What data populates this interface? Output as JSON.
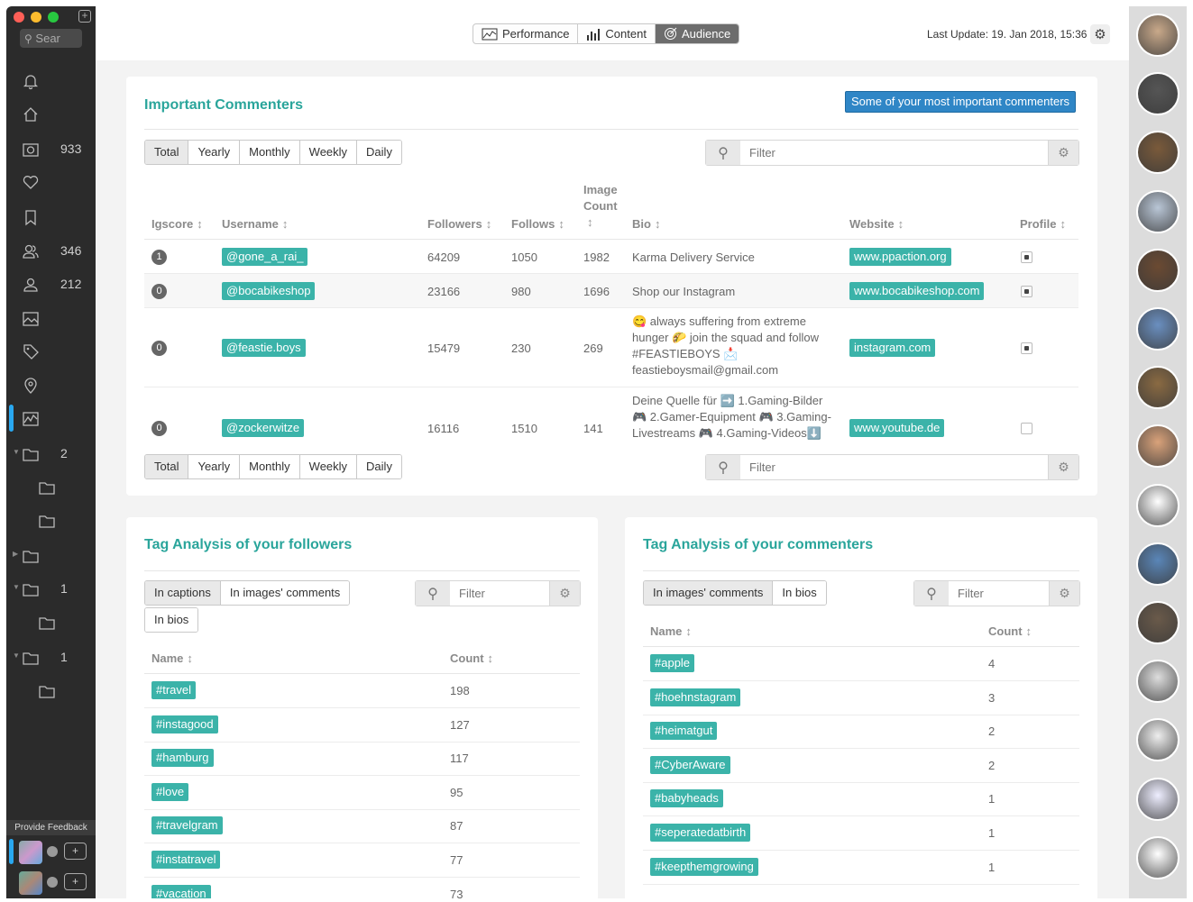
{
  "window": {
    "traffic_colors": [
      "#fe5f57",
      "#febc2e",
      "#28c840"
    ]
  },
  "sidebar": {
    "search_placeholder": "Sear",
    "items": [
      {
        "icon": "bell-icon",
        "count": ""
      },
      {
        "icon": "home-icon",
        "count": ""
      },
      {
        "icon": "camera-icon",
        "count": "933"
      },
      {
        "icon": "heart-icon",
        "count": ""
      },
      {
        "icon": "bookmark-icon",
        "count": ""
      },
      {
        "icon": "users-icon",
        "count": "346"
      },
      {
        "icon": "user-icon",
        "count": "212"
      },
      {
        "icon": "image-icon",
        "count": ""
      },
      {
        "icon": "tag-icon",
        "count": ""
      },
      {
        "icon": "location-icon",
        "count": ""
      },
      {
        "icon": "chart-icon",
        "count": ""
      },
      {
        "icon": "folder-icon",
        "count": "2"
      },
      {
        "icon": "folder-icon",
        "count": ""
      },
      {
        "icon": "folder-icon",
        "count": ""
      },
      {
        "icon": "folder-icon",
        "count": ""
      },
      {
        "icon": "folder-icon",
        "count": "1"
      },
      {
        "icon": "folder-icon",
        "count": ""
      },
      {
        "icon": "folder-icon",
        "count": "1"
      },
      {
        "icon": "folder-icon",
        "count": ""
      }
    ],
    "feedback_label": "Provide Feedback"
  },
  "topbar": {
    "tabs": [
      "Performance",
      "Content",
      "Audience"
    ],
    "active_tab": "Audience",
    "last_update": "Last Update: 19. Jan 2018, 15:36"
  },
  "commenters": {
    "title": "Important Commenters",
    "badge": "Some of your most important commenters",
    "periods": [
      "Total",
      "Yearly",
      "Monthly",
      "Weekly",
      "Daily"
    ],
    "filter_placeholder": "Filter",
    "columns": {
      "igscore": "Igscore",
      "username": "Username",
      "followers": "Followers",
      "follows": "Follows",
      "image_count": "Image Count",
      "bio": "Bio",
      "website": "Website",
      "profile": "Profile"
    },
    "rows": [
      {
        "score": "1",
        "username": "@gone_a_rai_",
        "followers": "64209",
        "follows": "1050",
        "images": "1982",
        "bio": "Karma Delivery Service",
        "website": "www.ppaction.org"
      },
      {
        "score": "0",
        "username": "@bocabikeshop",
        "followers": "23166",
        "follows": "980",
        "images": "1696",
        "bio": "Shop our Instagram",
        "website": "www.bocabikeshop.com"
      },
      {
        "score": "0",
        "username": "@feastie.boys",
        "followers": "15479",
        "follows": "230",
        "images": "269",
        "bio": "😋 always suffering from extreme hunger 🌮 join the squad and follow #FEASTIEBOYS 📩 feastieboysmail@gmail.com",
        "website": "instagram.com"
      },
      {
        "score": "0",
        "username": "@zockerwitze",
        "followers": "16116",
        "follows": "1510",
        "images": "141",
        "bio": "Deine Quelle für ➡️ 1.Gaming-Bilder 🎮 2.Gamer-Equipment 🎮 3.Gaming-Livestreams 🎮 4.Gaming-Videos⬇️",
        "website": "www.youtube.de"
      }
    ]
  },
  "followers_tags": {
    "title": "Tag Analysis of your followers",
    "options": [
      "In captions",
      "In images' comments",
      "In bios"
    ],
    "filter_placeholder": "Filter",
    "col_name": "Name",
    "col_count": "Count",
    "rows": [
      {
        "tag": "#travel",
        "count": "198"
      },
      {
        "tag": "#instagood",
        "count": "127"
      },
      {
        "tag": "#hamburg",
        "count": "117"
      },
      {
        "tag": "#love",
        "count": "95"
      },
      {
        "tag": "#travelgram",
        "count": "87"
      },
      {
        "tag": "#instatravel",
        "count": "77"
      },
      {
        "tag": "#vacation",
        "count": "73"
      }
    ]
  },
  "commenters_tags": {
    "title": "Tag Analysis of your commenters",
    "options": [
      "In images' comments",
      "In bios"
    ],
    "filter_placeholder": "Filter",
    "col_name": "Name",
    "col_count": "Count",
    "rows": [
      {
        "tag": "#apple",
        "count": "4"
      },
      {
        "tag": "#hoehnstagram",
        "count": "3"
      },
      {
        "tag": "#heimatgut",
        "count": "2"
      },
      {
        "tag": "#CyberAware",
        "count": "2"
      },
      {
        "tag": "#babyheads",
        "count": "1"
      },
      {
        "tag": "#seperatedatbirth",
        "count": "1"
      },
      {
        "tag": "#keepthemgrowing",
        "count": "1"
      }
    ]
  },
  "colors": {
    "accent": "#3bb3a9",
    "title": "#2aa59b",
    "badge": "#2f86c6",
    "active_indicator": "#29a8f0"
  }
}
